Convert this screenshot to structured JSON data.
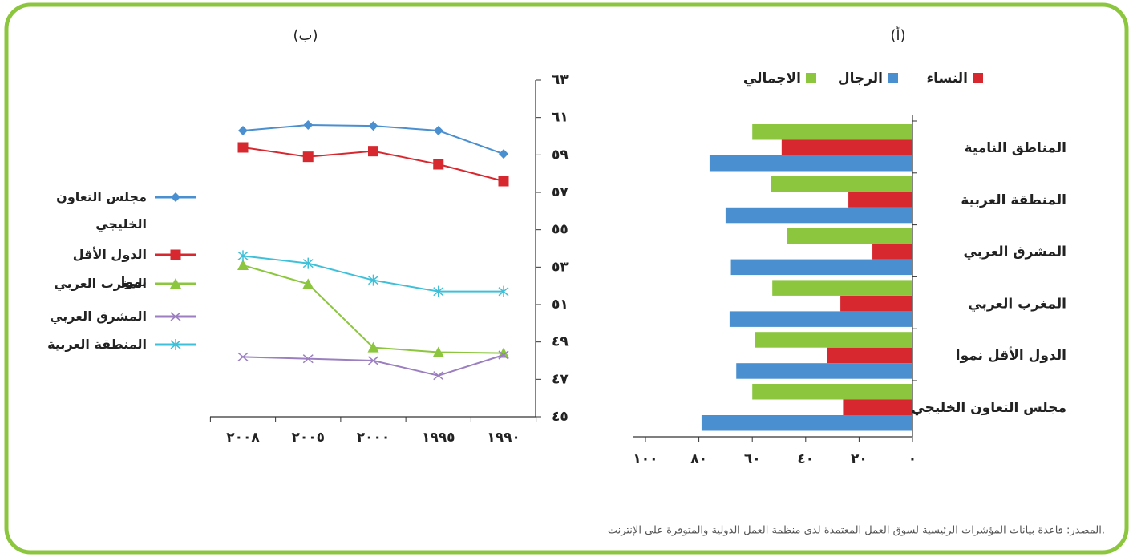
{
  "chart_data": [
    {
      "type": "hbar",
      "title": "(أ)",
      "categories": [
        "المناطق النامية",
        "المنطقة العربية",
        "المشرق العربي",
        "المغرب العربي",
        "الدول الأقل نموا",
        "مجلس التعاون الخليجي"
      ],
      "series": [
        {
          "name": "النساء",
          "color": "#d7282f",
          "values": [
            49,
            24,
            15,
            27,
            32,
            26
          ]
        },
        {
          "name": "الرجال",
          "color": "#4a8fd0",
          "values": [
            76,
            70,
            68,
            68.5,
            66,
            79
          ]
        },
        {
          "name": "الاجمالي",
          "color": "#8cc63f",
          "values": [
            60,
            53,
            47,
            52.5,
            59,
            60
          ]
        }
      ],
      "xlim": [
        0,
        100
      ],
      "xticks": [
        {
          "value": 0,
          "label": "٠"
        },
        {
          "value": 20,
          "label": "٢٠"
        },
        {
          "value": 40,
          "label": "٤٠"
        },
        {
          "value": 60,
          "label": "٦٠"
        },
        {
          "value": 80,
          "label": "٨٠"
        },
        {
          "value": 100,
          "label": "١٠٠"
        }
      ],
      "x_reversed": true
    },
    {
      "type": "line",
      "title": "(ب)",
      "categories": [
        "١٩٩٠",
        "١٩٩٥",
        "٢٠٠٠",
        "٢٠٠٥",
        "٢٠٠٨"
      ],
      "x_reversed": true,
      "series": [
        {
          "name": "مجلس التعاون الخليجي",
          "color": "#4a8fd0",
          "marker": "diamond",
          "values": [
            59.05,
            60.3,
            60.55,
            60.6,
            60.3
          ]
        },
        {
          "name": "الدول الأقل نموا",
          "color": "#d7282f",
          "marker": "square",
          "values": [
            57.6,
            58.5,
            59.2,
            58.9,
            59.4
          ]
        },
        {
          "name": "المغرب العربي",
          "color": "#8cc63f",
          "marker": "triangle",
          "values": [
            48.4,
            48.45,
            48.7,
            52.1,
            53.1
          ]
        },
        {
          "name": "المشرق العربي",
          "color": "#9b7fc0",
          "marker": "x",
          "values": [
            48.3,
            47.2,
            48.0,
            48.1,
            48.2
          ]
        },
        {
          "name": "المنطقة العربية",
          "color": "#3fc0d8",
          "marker": "asterisk",
          "values": [
            51.7,
            51.7,
            52.3,
            53.2,
            53.6
          ]
        }
      ],
      "ylim": [
        45,
        63
      ],
      "yticks": [
        {
          "value": 45,
          "label": "٤٥"
        },
        {
          "value": 47,
          "label": "٤٧"
        },
        {
          "value": 49,
          "label": "٤٩"
        },
        {
          "value": 51,
          "label": "٥١"
        },
        {
          "value": 53,
          "label": "٥٣"
        },
        {
          "value": 55,
          "label": "٥٥"
        },
        {
          "value": 57,
          "label": "٥٧"
        },
        {
          "value": 59,
          "label": "٥٩"
        },
        {
          "value": 61,
          "label": "٦١"
        },
        {
          "value": 63,
          "label": "٦٣"
        }
      ]
    }
  ],
  "source": "المصدر: قاعدة بيانات المؤشرات الرئيسية لسوق العمل المعتمدة لدى منظمة العمل الدولية والمتوفرة على الإنترنت."
}
